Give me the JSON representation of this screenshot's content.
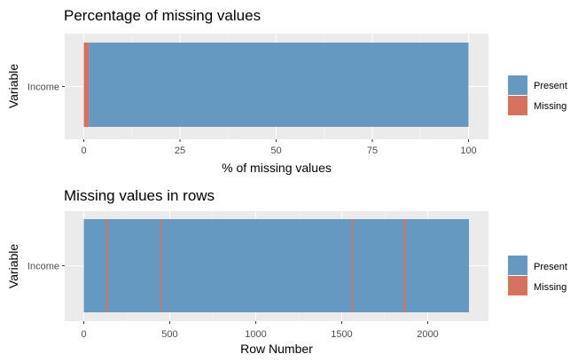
{
  "colors": {
    "present": "#6699C2",
    "missing": "#D4725F",
    "panel": "#EBEBEB",
    "grid_major": "#FFFFFF",
    "tick_text": "#4D4D4D"
  },
  "legend": {
    "items": [
      {
        "label": "Present",
        "color": "#6699C2"
      },
      {
        "label": "Missing",
        "color": "#D4725F"
      }
    ]
  },
  "chart_data": [
    {
      "type": "bar",
      "orientation": "horizontal",
      "stacked": true,
      "title": "Percentage of missing values",
      "xlabel": "% of missing values",
      "ylabel": "Variable",
      "xlim": [
        0,
        100
      ],
      "xticks": [
        0,
        25,
        50,
        75,
        100
      ],
      "categories": [
        "Income"
      ],
      "series": [
        {
          "name": "Missing",
          "values": [
            1.3
          ]
        },
        {
          "name": "Present",
          "values": [
            98.7
          ]
        }
      ],
      "grid": true,
      "legend_position": "right"
    },
    {
      "type": "heatmap",
      "title": "Missing values in rows",
      "xlabel": "Row Number",
      "ylabel": "Variable",
      "xlim": [
        0,
        2240
      ],
      "xticks": [
        0,
        500,
        1000,
        1500,
        2000
      ],
      "categories": [
        "Income"
      ],
      "present_range": [
        0,
        2240
      ],
      "missing_rows": [
        134,
        135,
        450,
        1561,
        1864,
        1866
      ],
      "grid": true,
      "legend_position": "right"
    }
  ]
}
